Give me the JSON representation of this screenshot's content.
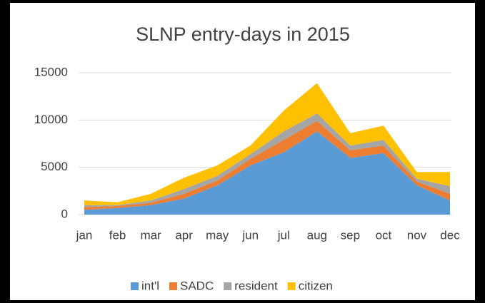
{
  "chart_data": {
    "type": "area",
    "stacked": true,
    "title": "SLNP entry-days in 2015",
    "categories": [
      "jan",
      "feb",
      "mar",
      "apr",
      "may",
      "jun",
      "jul",
      "aug",
      "sep",
      "oct",
      "nov",
      "dec"
    ],
    "series": [
      {
        "name": "int'l",
        "color": "#5b9bd5",
        "values": [
          500,
          700,
          1000,
          1700,
          3100,
          5200,
          6600,
          8800,
          6000,
          6500,
          3100,
          1500
        ]
      },
      {
        "name": "SADC",
        "color": "#ed7d31",
        "values": [
          300,
          200,
          250,
          500,
          500,
          700,
          1300,
          1100,
          800,
          800,
          400,
          700
        ]
      },
      {
        "name": "resident",
        "color": "#a5a5a5",
        "values": [
          200,
          100,
          250,
          500,
          500,
          500,
          900,
          800,
          500,
          600,
          300,
          800
        ]
      },
      {
        "name": "citizen",
        "color": "#ffc000",
        "values": [
          500,
          300,
          700,
          1200,
          1100,
          900,
          2200,
          3200,
          1300,
          1500,
          700,
          1500
        ]
      }
    ],
    "ylim": [
      0,
      15000
    ],
    "yticks": [
      0,
      5000,
      10000,
      15000
    ],
    "grid": true,
    "legend": "bottom"
  }
}
